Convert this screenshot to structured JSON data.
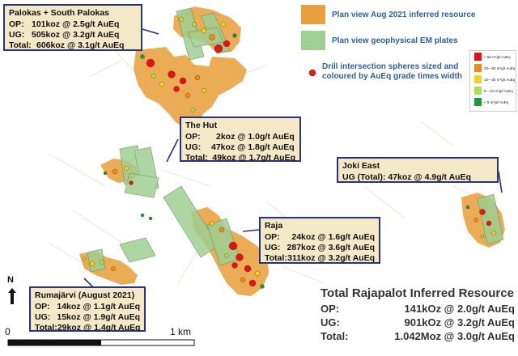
{
  "legend": {
    "inferred_label": "Plan view Aug 2021 inferred resource",
    "em_label": "Plan view geophysical EM plates",
    "drill_label": "Drill intersection spheres sized and coloured by AuEq grade times width",
    "colors": {
      "inferred": "#e9a13f",
      "em": "#9fcf93",
      "drill": "#e0201a"
    }
  },
  "grade_scale": [
    {
      "label": "> 50 m*g/t AuEq",
      "color": "#e3121b"
    },
    {
      "label": "25—50 m*g/t AuEq",
      "color": "#f28a1b"
    },
    {
      "label": "10—25 m*g/t AuEq",
      "color": "#f2d21b"
    },
    {
      "label": "5—10 m*g/t AuEq",
      "color": "#a8e05a"
    },
    {
      "label": "< 5 m*g/t AuEq",
      "color": "#1f9a3a"
    }
  ],
  "callouts": {
    "palokas": {
      "title": "Palokas + South Palokas",
      "rows": [
        {
          "label": "OP:",
          "value": "101koz @ 2.5g/t AuEq"
        },
        {
          "label": "UG:",
          "value": "505koz @ 3.2g/t AuEq"
        },
        {
          "label": "Total:",
          "value": "606koz @ 3.1g/t AuEq"
        }
      ]
    },
    "the_hut": {
      "title": "The Hut",
      "rows": [
        {
          "label": "OP:",
          "value": "2koz @ 1.0g/t AuEq"
        },
        {
          "label": "UG:",
          "value": "47koz @ 1.8g/t AuEq"
        },
        {
          "label": "Total:",
          "value": "49koz @ 1.7g/t AuEq"
        }
      ]
    },
    "joki_east": {
      "title": "Joki East",
      "rows": [
        {
          "label": "",
          "value": "UG (Total): 47koz @ 4.9g/t AuEq"
        }
      ]
    },
    "raja": {
      "title": "Raja",
      "rows": [
        {
          "label": "OP:",
          "value": "24koz @ 1.6g/t AuEq"
        },
        {
          "label": "UG:",
          "value": "287koz @ 3.6g/t AuEq"
        },
        {
          "label": "Total:",
          "value": "311koz @ 3.2g/t AuEq"
        }
      ]
    },
    "rumajarvi": {
      "title": "Rumajärvi (August 2021)",
      "rows": [
        {
          "label": "OP:",
          "value": "14koz @ 1.1g/t AuEq"
        },
        {
          "label": "UG:",
          "value": "15koz @ 1.9g/t AuEq"
        },
        {
          "label": "Total:",
          "value": "29koz @ 1.4g/t AuEq"
        }
      ]
    }
  },
  "total_resource": {
    "title": "Total Rajapalot Inferred Resource",
    "rows": [
      {
        "label": "OP:",
        "value": "141kOz @ 2.0g/t AuEq"
      },
      {
        "label": "UG:",
        "value": "901kOz @ 3.2g/t AuEq"
      },
      {
        "label": "Total:",
        "value": "1.042Moz @ 3.0g/t AuEq"
      }
    ]
  },
  "scale_bar": {
    "start_label": "0",
    "end_label": "1 km"
  },
  "north_label": "N"
}
